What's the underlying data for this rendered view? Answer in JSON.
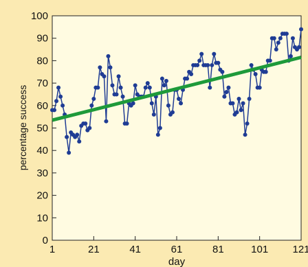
{
  "chart_data": {
    "type": "line",
    "xlabel": "day",
    "ylabel": "percentage success",
    "xlim": [
      1,
      121
    ],
    "ylim": [
      0,
      100
    ],
    "x_ticks": [
      "1",
      "21",
      "41",
      "61",
      "81",
      "101",
      "121"
    ],
    "y_ticks": [
      "0",
      "10",
      "20",
      "30",
      "40",
      "50",
      "60",
      "70",
      "80",
      "90",
      "100"
    ],
    "grid": false,
    "colors": {
      "series": "#1f3c94",
      "trend": "#1e9a3a",
      "background": "#fbeab2"
    },
    "series": [
      {
        "x": [
          1,
          2,
          3,
          4,
          5,
          6,
          7,
          8,
          9,
          10,
          11,
          12,
          13,
          14,
          15,
          16,
          17,
          18,
          19,
          20,
          21,
          22,
          23,
          24,
          25,
          26,
          27,
          28,
          29,
          30,
          31,
          32,
          33,
          34,
          35,
          36,
          37,
          38,
          39,
          40,
          41,
          42,
          43,
          44,
          45,
          46,
          47,
          48,
          49,
          50,
          51,
          52,
          53,
          54,
          55,
          56,
          57,
          58,
          59,
          60,
          61,
          62,
          63,
          64,
          65,
          66,
          67,
          68,
          69,
          70,
          71,
          72,
          73,
          74,
          75,
          76,
          77,
          78,
          79,
          80,
          81,
          82,
          83,
          84,
          85,
          86,
          87,
          88,
          89,
          90,
          91,
          92,
          93,
          94,
          95,
          96,
          97,
          98,
          99,
          100,
          101,
          102,
          103,
          104,
          105,
          106,
          107,
          108,
          109,
          110,
          111,
          112,
          113,
          114,
          115,
          116,
          117,
          118,
          119,
          120,
          121
        ],
        "y": [
          58,
          58,
          62,
          68,
          64,
          60,
          56,
          46,
          39,
          48,
          47,
          46,
          47,
          44,
          51,
          52,
          52,
          49,
          50,
          60,
          63,
          68,
          68,
          77,
          74,
          73,
          53,
          82,
          77,
          69,
          65,
          65,
          73,
          68,
          64,
          52,
          52,
          61,
          60,
          61,
          69,
          65,
          64,
          64,
          64,
          68,
          70,
          68,
          61,
          56,
          64,
          47,
          50,
          72,
          69,
          71,
          60,
          56,
          57,
          67,
          67,
          63,
          61,
          67,
          72,
          72,
          75,
          74,
          78,
          78,
          78,
          80,
          83,
          78,
          78,
          78,
          68,
          78,
          83,
          79,
          79,
          76,
          75,
          64,
          66,
          68,
          61,
          61,
          56,
          57,
          63,
          58,
          61,
          47,
          52,
          63,
          78,
          76,
          74,
          68,
          68,
          76,
          75,
          75,
          80,
          80,
          90,
          90,
          85,
          88,
          90,
          92,
          92,
          92,
          80,
          82,
          90,
          86,
          85,
          86,
          94
        ]
      }
    ],
    "trend_line": {
      "x": [
        1,
        121
      ],
      "y": [
        53.5,
        81.5
      ]
    }
  }
}
